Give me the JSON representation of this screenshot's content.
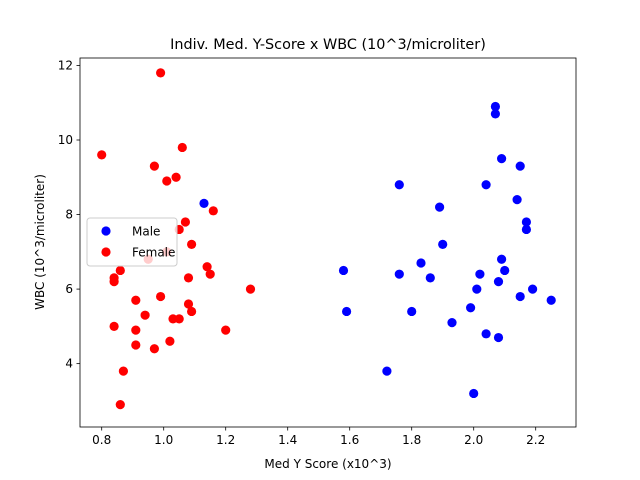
{
  "chart_data": {
    "type": "scatter",
    "title": "Indiv. Med. Y-Score x WBC (10^3/microliter)",
    "xlabel": "Med Y Score (x10^3)",
    "ylabel": "WBC (10^3/microliter)",
    "xlim": [
      0.73,
      2.33
    ],
    "ylim": [
      2.3,
      12.2
    ],
    "xticks": [
      0.8,
      1.0,
      1.2,
      1.4,
      1.6,
      1.8,
      2.0,
      2.2
    ],
    "xtick_labels": [
      "0.8",
      "1.0",
      "1.2",
      "1.4",
      "1.6",
      "1.8",
      "2.0",
      "2.2"
    ],
    "yticks": [
      4,
      6,
      8,
      10,
      12
    ],
    "ytick_labels": [
      "4",
      "6",
      "8",
      "10",
      "12"
    ],
    "grid": false,
    "legend_position": "center-left",
    "series": [
      {
        "name": "Male",
        "color": "#0000ff",
        "points": [
          [
            1.13,
            8.3
          ],
          [
            1.58,
            6.5
          ],
          [
            1.59,
            5.4
          ],
          [
            1.72,
            3.8
          ],
          [
            1.76,
            8.8
          ],
          [
            1.76,
            6.4
          ],
          [
            1.8,
            5.4
          ],
          [
            1.83,
            6.7
          ],
          [
            1.86,
            6.3
          ],
          [
            1.89,
            8.2
          ],
          [
            1.9,
            7.2
          ],
          [
            1.93,
            5.1
          ],
          [
            1.99,
            5.5
          ],
          [
            2.0,
            3.2
          ],
          [
            2.01,
            6.0
          ],
          [
            2.02,
            6.4
          ],
          [
            2.04,
            8.8
          ],
          [
            2.04,
            4.8
          ],
          [
            2.07,
            10.9
          ],
          [
            2.07,
            10.7
          ],
          [
            2.08,
            6.2
          ],
          [
            2.08,
            4.7
          ],
          [
            2.09,
            9.5
          ],
          [
            2.09,
            6.8
          ],
          [
            2.1,
            6.5
          ],
          [
            2.14,
            8.4
          ],
          [
            2.15,
            9.3
          ],
          [
            2.15,
            5.8
          ],
          [
            2.17,
            7.8
          ],
          [
            2.17,
            7.6
          ],
          [
            2.19,
            6.0
          ],
          [
            2.25,
            5.7
          ]
        ]
      },
      {
        "name": "Female",
        "color": "#ff0000",
        "points": [
          [
            0.8,
            9.6
          ],
          [
            0.84,
            6.3
          ],
          [
            0.84,
            6.2
          ],
          [
            0.84,
            5.0
          ],
          [
            0.86,
            6.5
          ],
          [
            0.86,
            2.9
          ],
          [
            0.87,
            3.8
          ],
          [
            0.91,
            5.7
          ],
          [
            0.91,
            4.9
          ],
          [
            0.91,
            4.5
          ],
          [
            0.94,
            5.3
          ],
          [
            0.95,
            6.8
          ],
          [
            0.97,
            9.3
          ],
          [
            0.97,
            4.4
          ],
          [
            0.99,
            11.8
          ],
          [
            0.99,
            5.8
          ],
          [
            1.01,
            8.9
          ],
          [
            1.01,
            7.0
          ],
          [
            1.02,
            4.6
          ],
          [
            1.03,
            5.2
          ],
          [
            1.04,
            9.0
          ],
          [
            1.05,
            7.6
          ],
          [
            1.05,
            5.2
          ],
          [
            1.06,
            9.8
          ],
          [
            1.07,
            7.8
          ],
          [
            1.08,
            6.3
          ],
          [
            1.08,
            5.6
          ],
          [
            1.09,
            7.2
          ],
          [
            1.09,
            5.4
          ],
          [
            1.14,
            6.6
          ],
          [
            1.15,
            6.4
          ],
          [
            1.16,
            8.1
          ],
          [
            1.2,
            4.9
          ],
          [
            1.28,
            6.0
          ]
        ]
      }
    ]
  }
}
